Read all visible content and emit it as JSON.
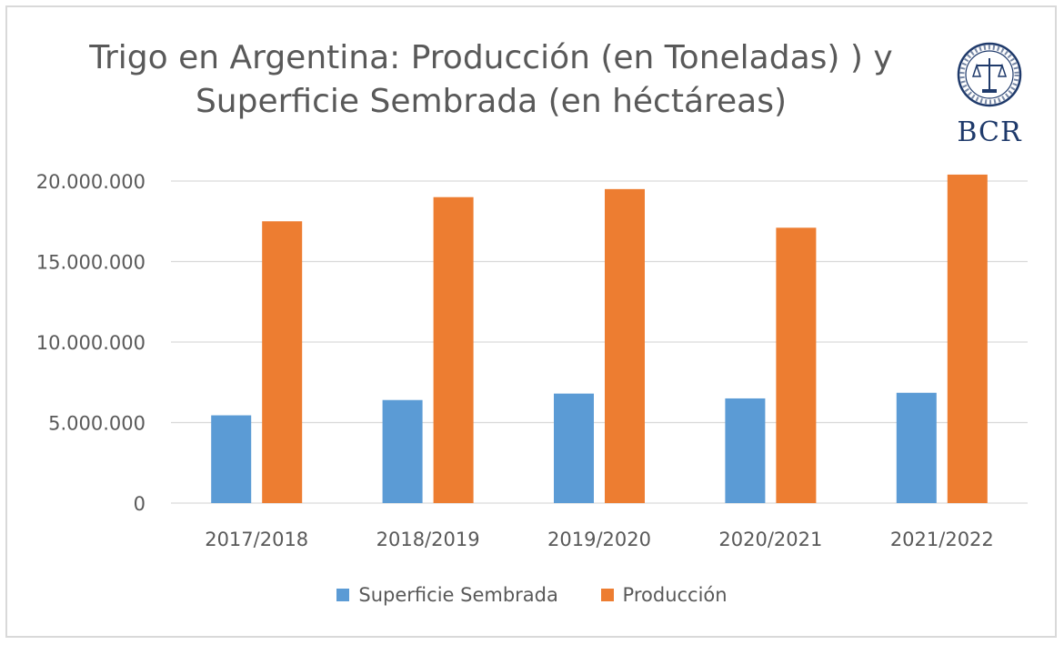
{
  "chart_data": {
    "type": "bar",
    "title_lines": [
      "Trigo en Argentina: Producción (en Toneladas) ) y",
      "Superficie Sembrada (en héctáreas)"
    ],
    "categories": [
      "2017/2018",
      "2018/2019",
      "2019/2020",
      "2020/2021",
      "2021/2022"
    ],
    "series": [
      {
        "name": "Superficie Sembrada",
        "color": "#5b9bd5",
        "values": [
          5450000,
          6400000,
          6800000,
          6500000,
          6850000
        ]
      },
      {
        "name": "Producción",
        "color": "#ed7d31",
        "values": [
          17500000,
          19000000,
          19500000,
          17100000,
          20400000
        ]
      }
    ],
    "ylim": [
      0,
      20000000
    ],
    "yticks": [
      "0",
      "5.000.000",
      "10.000.000",
      "15.000.000",
      "20.000.000"
    ],
    "ytick_values": [
      0,
      5000000,
      10000000,
      15000000,
      20000000
    ],
    "grid": true,
    "legend_position": "bottom"
  },
  "logo": {
    "text": "BCR",
    "seal_color": "#1f3a6b",
    "icon": "bcr-seal-icon"
  }
}
